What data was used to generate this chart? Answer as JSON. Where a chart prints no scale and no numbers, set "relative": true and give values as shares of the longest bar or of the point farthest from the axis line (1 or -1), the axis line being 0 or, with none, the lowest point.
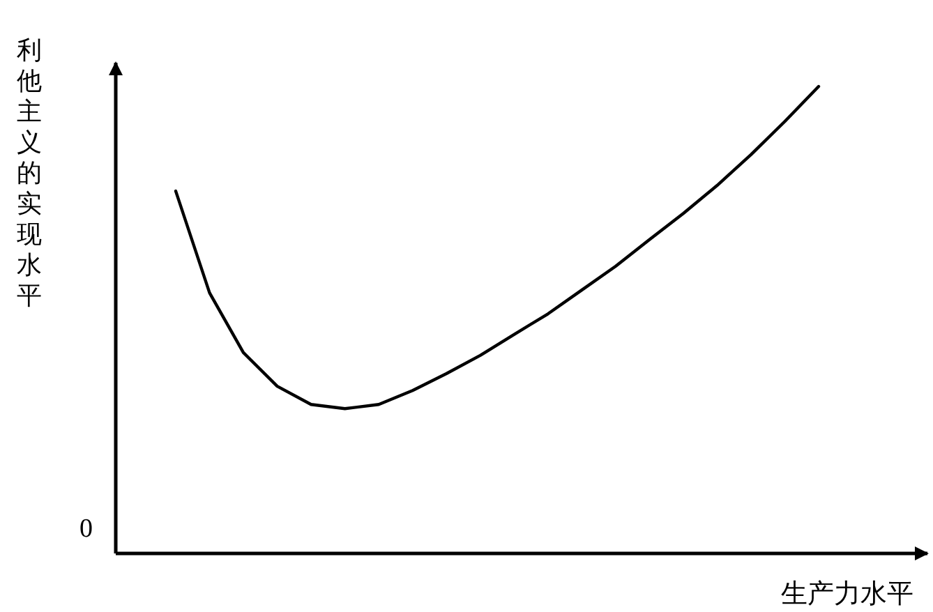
{
  "chart_data": {
    "type": "line",
    "relative": true,
    "xlabel": "生产力水平",
    "ylabel": "利他主义的实现水平",
    "annotations": [
      "0"
    ],
    "categories": [
      null,
      null,
      null,
      null,
      null,
      null,
      null,
      null,
      null,
      null,
      null,
      null,
      null,
      null,
      null,
      null,
      null,
      null,
      null,
      null
    ],
    "series": [
      {
        "color": "#000000",
        "values": [
          0.776,
          0.558,
          0.43,
          0.358,
          0.319,
          0.31,
          0.319,
          0.349,
          0.385,
          0.424,
          0.469,
          0.513,
          0.564,
          0.615,
          0.672,
          0.728,
          0.788,
          0.854,
          0.925,
          1
        ]
      }
    ]
  }
}
